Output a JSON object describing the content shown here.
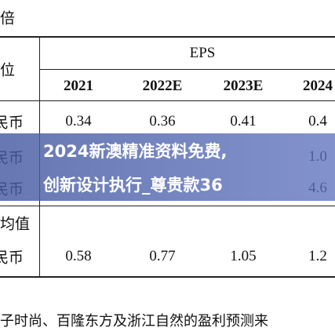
{
  "table": {
    "corner": "倍",
    "unit_label": "位",
    "group_header": "EPS",
    "columns": [
      "2021",
      "2022E",
      "2023E",
      "2024"
    ],
    "rows": [
      {
        "label": "民币",
        "cells": [
          "0.34",
          "0.36",
          "0.41",
          "0.4"
        ]
      },
      {
        "label": "民币",
        "last": "1.0"
      },
      {
        "label": "民币",
        "last": "4.6"
      }
    ],
    "avg_label": "均值",
    "avg_row": {
      "label": "民币",
      "cells": [
        "0.58",
        "0.77",
        "1.05",
        "1.2"
      ]
    }
  },
  "footnote": "子时尚、百隆东方及浙江自然的盈利预测来",
  "banner": {
    "line1": "2024新澳精准资料免费,",
    "line2": "创新设计执行_尊贵款36"
  }
}
